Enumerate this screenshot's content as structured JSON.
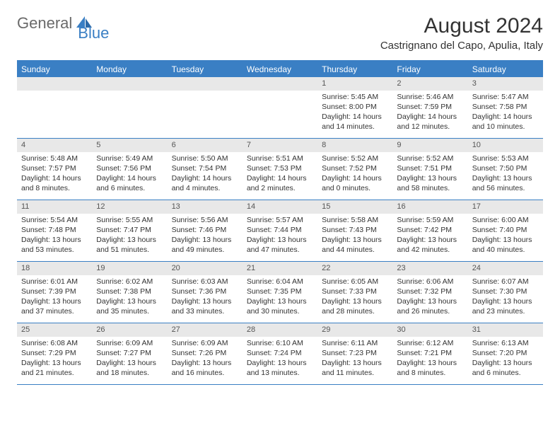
{
  "logo": {
    "text1": "General",
    "text2": "Blue"
  },
  "title": "August 2024",
  "location": "Castrignano del Capo, Apulia, Italy",
  "colors": {
    "header_bg": "#3a7fc4",
    "header_text": "#ffffff",
    "daynum_bg": "#e8e8e8",
    "border": "#3a7fc4",
    "body_text": "#333333"
  },
  "day_headers": [
    "Sunday",
    "Monday",
    "Tuesday",
    "Wednesday",
    "Thursday",
    "Friday",
    "Saturday"
  ],
  "weeks": [
    [
      {
        "blank": true
      },
      {
        "blank": true
      },
      {
        "blank": true
      },
      {
        "blank": true
      },
      {
        "n": "1",
        "sr": "Sunrise: 5:45 AM",
        "ss": "Sunset: 8:00 PM",
        "dl1": "Daylight: 14 hours",
        "dl2": "and 14 minutes."
      },
      {
        "n": "2",
        "sr": "Sunrise: 5:46 AM",
        "ss": "Sunset: 7:59 PM",
        "dl1": "Daylight: 14 hours",
        "dl2": "and 12 minutes."
      },
      {
        "n": "3",
        "sr": "Sunrise: 5:47 AM",
        "ss": "Sunset: 7:58 PM",
        "dl1": "Daylight: 14 hours",
        "dl2": "and 10 minutes."
      }
    ],
    [
      {
        "n": "4",
        "sr": "Sunrise: 5:48 AM",
        "ss": "Sunset: 7:57 PM",
        "dl1": "Daylight: 14 hours",
        "dl2": "and 8 minutes."
      },
      {
        "n": "5",
        "sr": "Sunrise: 5:49 AM",
        "ss": "Sunset: 7:56 PM",
        "dl1": "Daylight: 14 hours",
        "dl2": "and 6 minutes."
      },
      {
        "n": "6",
        "sr": "Sunrise: 5:50 AM",
        "ss": "Sunset: 7:54 PM",
        "dl1": "Daylight: 14 hours",
        "dl2": "and 4 minutes."
      },
      {
        "n": "7",
        "sr": "Sunrise: 5:51 AM",
        "ss": "Sunset: 7:53 PM",
        "dl1": "Daylight: 14 hours",
        "dl2": "and 2 minutes."
      },
      {
        "n": "8",
        "sr": "Sunrise: 5:52 AM",
        "ss": "Sunset: 7:52 PM",
        "dl1": "Daylight: 14 hours",
        "dl2": "and 0 minutes."
      },
      {
        "n": "9",
        "sr": "Sunrise: 5:52 AM",
        "ss": "Sunset: 7:51 PM",
        "dl1": "Daylight: 13 hours",
        "dl2": "and 58 minutes."
      },
      {
        "n": "10",
        "sr": "Sunrise: 5:53 AM",
        "ss": "Sunset: 7:50 PM",
        "dl1": "Daylight: 13 hours",
        "dl2": "and 56 minutes."
      }
    ],
    [
      {
        "n": "11",
        "sr": "Sunrise: 5:54 AM",
        "ss": "Sunset: 7:48 PM",
        "dl1": "Daylight: 13 hours",
        "dl2": "and 53 minutes."
      },
      {
        "n": "12",
        "sr": "Sunrise: 5:55 AM",
        "ss": "Sunset: 7:47 PM",
        "dl1": "Daylight: 13 hours",
        "dl2": "and 51 minutes."
      },
      {
        "n": "13",
        "sr": "Sunrise: 5:56 AM",
        "ss": "Sunset: 7:46 PM",
        "dl1": "Daylight: 13 hours",
        "dl2": "and 49 minutes."
      },
      {
        "n": "14",
        "sr": "Sunrise: 5:57 AM",
        "ss": "Sunset: 7:44 PM",
        "dl1": "Daylight: 13 hours",
        "dl2": "and 47 minutes."
      },
      {
        "n": "15",
        "sr": "Sunrise: 5:58 AM",
        "ss": "Sunset: 7:43 PM",
        "dl1": "Daylight: 13 hours",
        "dl2": "and 44 minutes."
      },
      {
        "n": "16",
        "sr": "Sunrise: 5:59 AM",
        "ss": "Sunset: 7:42 PM",
        "dl1": "Daylight: 13 hours",
        "dl2": "and 42 minutes."
      },
      {
        "n": "17",
        "sr": "Sunrise: 6:00 AM",
        "ss": "Sunset: 7:40 PM",
        "dl1": "Daylight: 13 hours",
        "dl2": "and 40 minutes."
      }
    ],
    [
      {
        "n": "18",
        "sr": "Sunrise: 6:01 AM",
        "ss": "Sunset: 7:39 PM",
        "dl1": "Daylight: 13 hours",
        "dl2": "and 37 minutes."
      },
      {
        "n": "19",
        "sr": "Sunrise: 6:02 AM",
        "ss": "Sunset: 7:38 PM",
        "dl1": "Daylight: 13 hours",
        "dl2": "and 35 minutes."
      },
      {
        "n": "20",
        "sr": "Sunrise: 6:03 AM",
        "ss": "Sunset: 7:36 PM",
        "dl1": "Daylight: 13 hours",
        "dl2": "and 33 minutes."
      },
      {
        "n": "21",
        "sr": "Sunrise: 6:04 AM",
        "ss": "Sunset: 7:35 PM",
        "dl1": "Daylight: 13 hours",
        "dl2": "and 30 minutes."
      },
      {
        "n": "22",
        "sr": "Sunrise: 6:05 AM",
        "ss": "Sunset: 7:33 PM",
        "dl1": "Daylight: 13 hours",
        "dl2": "and 28 minutes."
      },
      {
        "n": "23",
        "sr": "Sunrise: 6:06 AM",
        "ss": "Sunset: 7:32 PM",
        "dl1": "Daylight: 13 hours",
        "dl2": "and 26 minutes."
      },
      {
        "n": "24",
        "sr": "Sunrise: 6:07 AM",
        "ss": "Sunset: 7:30 PM",
        "dl1": "Daylight: 13 hours",
        "dl2": "and 23 minutes."
      }
    ],
    [
      {
        "n": "25",
        "sr": "Sunrise: 6:08 AM",
        "ss": "Sunset: 7:29 PM",
        "dl1": "Daylight: 13 hours",
        "dl2": "and 21 minutes."
      },
      {
        "n": "26",
        "sr": "Sunrise: 6:09 AM",
        "ss": "Sunset: 7:27 PM",
        "dl1": "Daylight: 13 hours",
        "dl2": "and 18 minutes."
      },
      {
        "n": "27",
        "sr": "Sunrise: 6:09 AM",
        "ss": "Sunset: 7:26 PM",
        "dl1": "Daylight: 13 hours",
        "dl2": "and 16 minutes."
      },
      {
        "n": "28",
        "sr": "Sunrise: 6:10 AM",
        "ss": "Sunset: 7:24 PM",
        "dl1": "Daylight: 13 hours",
        "dl2": "and 13 minutes."
      },
      {
        "n": "29",
        "sr": "Sunrise: 6:11 AM",
        "ss": "Sunset: 7:23 PM",
        "dl1": "Daylight: 13 hours",
        "dl2": "and 11 minutes."
      },
      {
        "n": "30",
        "sr": "Sunrise: 6:12 AM",
        "ss": "Sunset: 7:21 PM",
        "dl1": "Daylight: 13 hours",
        "dl2": "and 8 minutes."
      },
      {
        "n": "31",
        "sr": "Sunrise: 6:13 AM",
        "ss": "Sunset: 7:20 PM",
        "dl1": "Daylight: 13 hours",
        "dl2": "and 6 minutes."
      }
    ]
  ]
}
